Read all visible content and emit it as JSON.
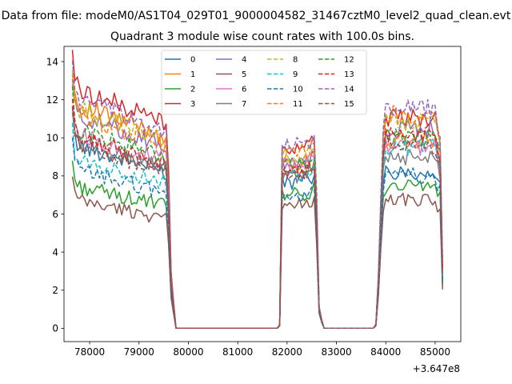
{
  "chart_data": {
    "type": "line",
    "suptitle": "Data from file: modeM0/AS1T04_029T01_9000004582_31467cztM0_level2_quad_clean.evt",
    "title": "Quadrant 3 module wise count rates with 100.0s bins.",
    "xlabel": "",
    "ylabel": "",
    "x_offset_label": "+3.647e8",
    "xlim": [
      77480,
      85520
    ],
    "ylim": [
      -0.7,
      14.8
    ],
    "xticks": [
      78000,
      79000,
      80000,
      81000,
      82000,
      83000,
      84000,
      85000
    ],
    "yticks": [
      0,
      2,
      4,
      6,
      8,
      10,
      12,
      14
    ],
    "grid": false,
    "legend_placement": "top-center",
    "legend_ncol": 4,
    "x_start": 77650,
    "x_step": 50,
    "series": [
      {
        "name": "0",
        "color": "#1f77b4",
        "dash": "solid",
        "level_a": 9.0,
        "level_b": 7.7,
        "level_c": 8.2
      },
      {
        "name": "1",
        "color": "#ff7f0e",
        "dash": "solid",
        "level_a": 11.0,
        "level_b": 8.7,
        "level_c": 9.8
      },
      {
        "name": "2",
        "color": "#2ca02c",
        "dash": "solid",
        "level_a": 7.0,
        "level_b": 7.0,
        "level_c": 7.5
      },
      {
        "name": "3",
        "color": "#d62728",
        "dash": "solid",
        "level_a": 11.8,
        "level_b": 9.5,
        "level_c": 11.0
      },
      {
        "name": "4",
        "color": "#9467bd",
        "dash": "solid",
        "level_a": 10.5,
        "level_b": 8.8,
        "level_c": 10.5
      },
      {
        "name": "5",
        "color": "#8c564b",
        "dash": "solid",
        "level_a": 6.3,
        "level_b": 6.5,
        "level_c": 6.8
      },
      {
        "name": "6",
        "color": "#e377c2",
        "dash": "solid",
        "level_a": 9.6,
        "level_b": 8.5,
        "level_c": 9.5
      },
      {
        "name": "7",
        "color": "#7f7f7f",
        "dash": "solid",
        "level_a": 9.2,
        "level_b": 8.0,
        "level_c": 9.0
      },
      {
        "name": "8",
        "color": "#bcbd22",
        "dash": "dashed",
        "level_a": 10.8,
        "level_b": 9.0,
        "level_c": 10.8
      },
      {
        "name": "9",
        "color": "#17becf",
        "dash": "dashed",
        "level_a": 8.3,
        "level_b": 8.0,
        "level_c": 9.5
      },
      {
        "name": "10",
        "color": "#1f77b4",
        "dash": "dashed",
        "level_a": 7.8,
        "level_b": 6.8,
        "level_c": 8.0
      },
      {
        "name": "11",
        "color": "#ff7f0e",
        "dash": "dashed",
        "level_a": 10.5,
        "level_b": 9.2,
        "level_c": 11.2
      },
      {
        "name": "12",
        "color": "#2ca02c",
        "dash": "dashed",
        "level_a": 9.8,
        "level_b": 8.5,
        "level_c": 10.0
      },
      {
        "name": "13",
        "color": "#d62728",
        "dash": "dashed",
        "level_a": 9.4,
        "level_b": 8.2,
        "level_c": 10.2
      },
      {
        "name": "14",
        "color": "#9467bd",
        "dash": "dashed",
        "level_a": 11.3,
        "level_b": 9.6,
        "level_c": 11.5
      },
      {
        "name": "15",
        "color": "#8c564b",
        "dash": "dashed",
        "level_a": 9.0,
        "level_b": 8.3,
        "level_c": 9.6
      }
    ],
    "profile": [
      [
        77650,
        1.25
      ],
      [
        77700,
        1.12
      ],
      [
        77750,
        1.08
      ],
      [
        77800,
        1.06
      ],
      [
        79500,
        0.92
      ],
      [
        79560,
        0.9
      ],
      [
        79580,
        0.82
      ],
      [
        79650,
        0.25
      ],
      [
        79700,
        0.12
      ],
      [
        79750,
        0.0
      ],
      [
        81800,
        0.0
      ],
      [
        81850,
        0.02
      ],
      [
        81900,
        1.0
      ],
      [
        82350,
        1.0
      ],
      [
        82550,
        1.05
      ],
      [
        82600,
        0.7
      ],
      [
        82650,
        0.12
      ],
      [
        82700,
        0.05
      ],
      [
        82750,
        0.0
      ],
      [
        83750,
        0.0
      ],
      [
        83800,
        0.02
      ],
      [
        83850,
        0.25
      ],
      [
        83900,
        0.6
      ],
      [
        83950,
        0.92
      ],
      [
        84000,
        1.0
      ],
      [
        85000,
        1.0
      ],
      [
        85100,
        0.9
      ],
      [
        85150,
        0.3
      ]
    ]
  }
}
